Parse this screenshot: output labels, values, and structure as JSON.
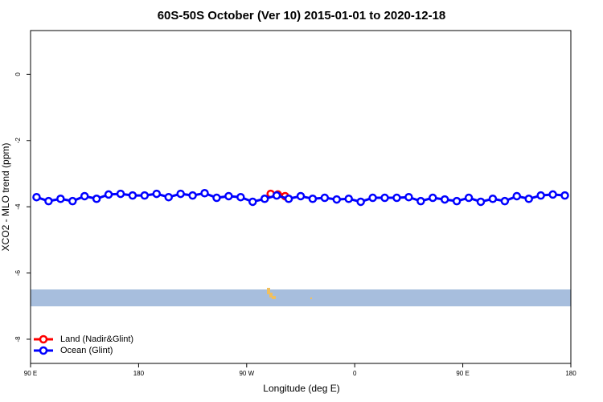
{
  "chart_data": {
    "type": "line",
    "title": "60S-50S October (Ver 10)   2015-01-01 to 2020-12-18",
    "x_label": "Longitude (deg E)",
    "y_label": "XCO2 - MLO trend (ppm)",
    "xlim": [
      90,
      540
    ],
    "ylim": [
      -8.73,
      1.32
    ],
    "xticks": [
      {
        "value": 90,
        "label": "90 E"
      },
      180,
      {
        "value": 270,
        "label": "90 W"
      },
      {
        "value": 360,
        "label": "0"
      },
      {
        "value": 450,
        "label": "90 E"
      },
      {
        "value": 540,
        "label": "180"
      }
    ],
    "yticks": [
      -8,
      -6,
      -4,
      -2,
      0
    ],
    "legend": "bottomleft",
    "series": [
      {
        "name": "Land (Nadir&Glint)",
        "color": "#ff0000",
        "x": [
          290,
          296,
          302
        ],
        "values": [
          -3.61,
          -3.63,
          -3.68
        ]
      },
      {
        "name": "Ocean (Glint)",
        "color": "#0000ff",
        "x": [
          95,
          105,
          115,
          125,
          135,
          145,
          155,
          165,
          175,
          185,
          195,
          205,
          215,
          225,
          235,
          245,
          255,
          265,
          275,
          285,
          295,
          305,
          315,
          325,
          335,
          345,
          355,
          365,
          375,
          385,
          395,
          405,
          415,
          425,
          435,
          445,
          455,
          465,
          475,
          485,
          495,
          505,
          515,
          525,
          535
        ],
        "values": [
          -3.71,
          -3.83,
          -3.76,
          -3.83,
          -3.68,
          -3.76,
          -3.63,
          -3.61,
          -3.66,
          -3.66,
          -3.61,
          -3.71,
          -3.61,
          -3.66,
          -3.59,
          -3.73,
          -3.68,
          -3.71,
          -3.85,
          -3.76,
          -3.66,
          -3.76,
          -3.68,
          -3.76,
          -3.73,
          -3.78,
          -3.76,
          -3.85,
          -3.73,
          -3.73,
          -3.73,
          -3.71,
          -3.83,
          -3.73,
          -3.78,
          -3.83,
          -3.73,
          -3.85,
          -3.76,
          -3.83,
          -3.68,
          -3.76,
          -3.66,
          -3.63,
          -3.66
        ]
      }
    ]
  }
}
